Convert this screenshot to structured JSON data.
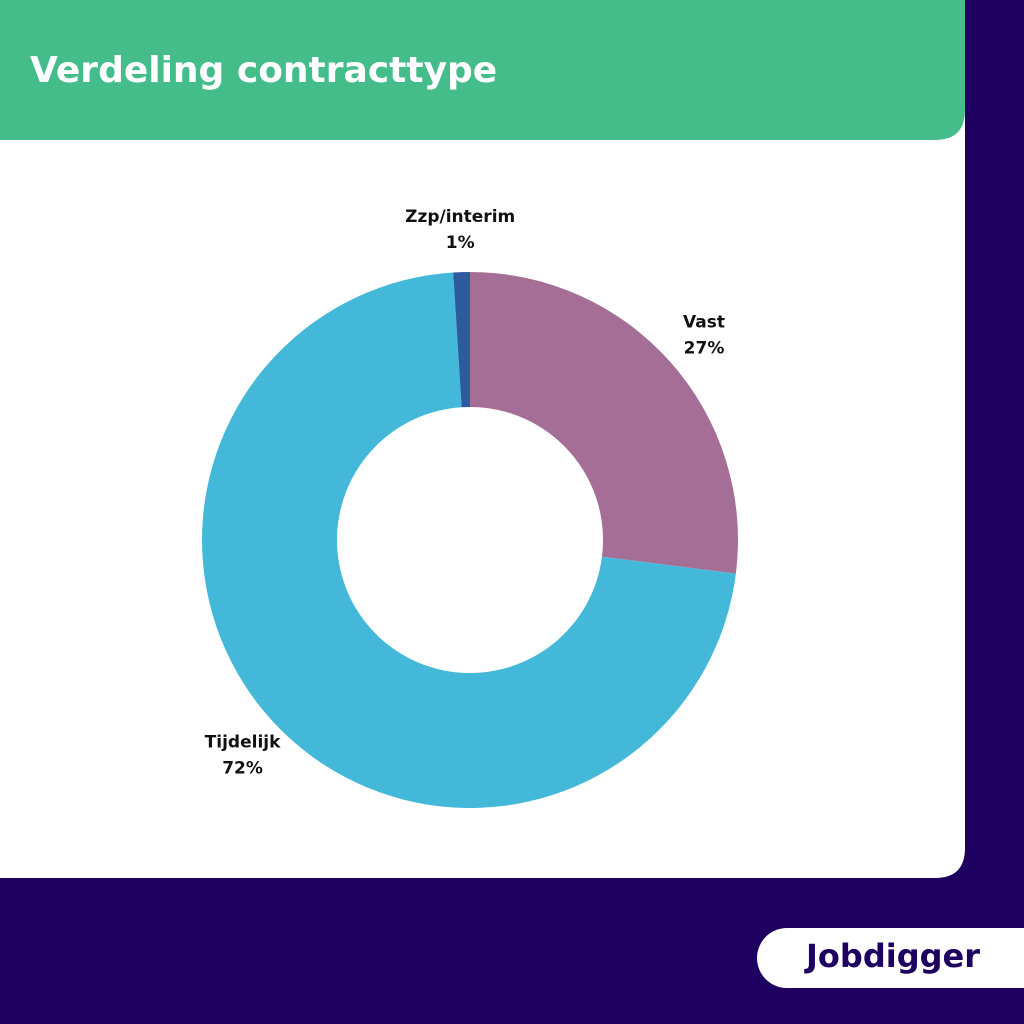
{
  "chart_data": {
    "type": "donut",
    "title": "Verdeling contracttype",
    "categories": [
      "Vast",
      "Tijdelijk",
      "Zzp/interim"
    ],
    "values": [
      27,
      72,
      1
    ],
    "value_labels": [
      "27%",
      "72%",
      "1%"
    ],
    "colors": [
      "#a56e96",
      "#44b8d8",
      "#2c5b9e"
    ]
  },
  "logo": "Jobdigger"
}
